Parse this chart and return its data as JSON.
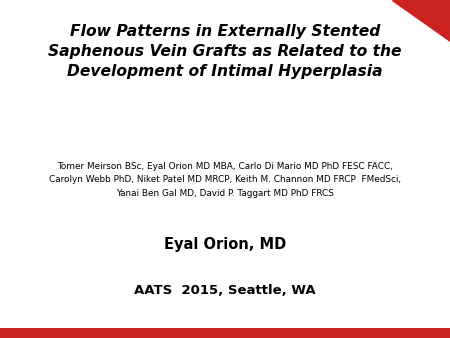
{
  "title_line1": "Flow Patterns in Externally Stented",
  "title_line2": "Saphenous Vein Grafts as Related to the",
  "title_line3": "Development of Intimal Hyperplasia",
  "authors_line1": "Tomer Meirson BSc, Eyal Orion MD MBA, Carlo Di Mario MD PhD FESC FACC,",
  "authors_line2": "Carolyn Webb PhD, Niket Patel MD MRCP, Keith M. Channon MD FRCP  FMedSci,",
  "authors_line3": "Yanai Ben Gal MD, David P. Taggart MD PhD FRCS",
  "presenter": "Eyal Orion, MD",
  "conference": "AATS  2015, Seattle, WA",
  "background_color": "#ffffff",
  "title_color": "#000000",
  "authors_color": "#000000",
  "presenter_color": "#000000",
  "conference_color": "#000000",
  "red_color": "#cc2222",
  "bottom_bar_color": "#cc2222",
  "top_triangle_color": "#cc2222",
  "title_fontsize": 11.2,
  "authors_fontsize": 6.4,
  "presenter_fontsize": 10.5,
  "conference_fontsize": 9.5
}
